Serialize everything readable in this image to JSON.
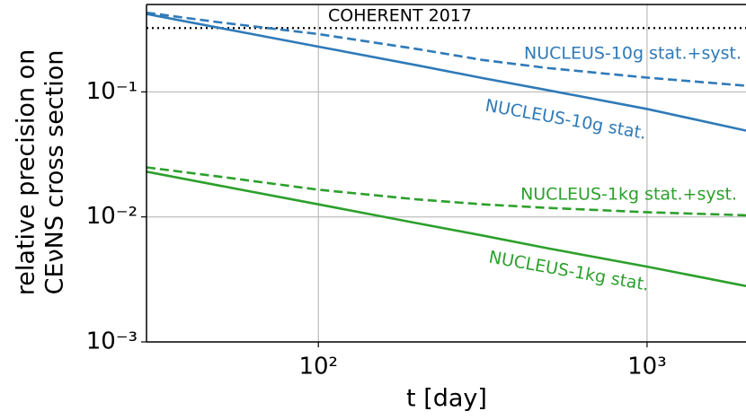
{
  "chart_data": {
    "type": "line",
    "xlabel": "t [day]",
    "ylabel": [
      "relative precision on",
      "CEνNS cross section"
    ],
    "xscale": "log",
    "yscale": "log",
    "grid": true,
    "xlim": [
      30,
      2000
    ],
    "ylim": [
      0.001,
      0.5
    ],
    "xticks": [
      {
        "value": 100,
        "label": "10²"
      },
      {
        "value": 1000,
        "label": "10³"
      }
    ],
    "yticks": [
      {
        "value": 0.001,
        "label": "10⁻³"
      },
      {
        "value": 0.01,
        "label": "10⁻²"
      },
      {
        "value": 0.1,
        "label": "10⁻¹"
      }
    ],
    "x": [
      30,
      50,
      100,
      200,
      316,
      500,
      1000,
      2000
    ],
    "series": [
      {
        "name": "NUCLEUS-10g stat.+syst.",
        "color": "#2f7ab8",
        "dash": "dashed",
        "values": [
          0.43,
          0.36,
          0.29,
          0.22,
          0.18,
          0.155,
          0.13,
          0.112
        ]
      },
      {
        "name": "NUCLEUS-10g stat.",
        "color": "#2f7ab8",
        "dash": "solid",
        "values": [
          0.42,
          0.325,
          0.23,
          0.163,
          0.129,
          0.103,
          0.073,
          0.049
        ]
      },
      {
        "name": "NUCLEUS-1kg stat.+syst.",
        "color": "#2ca02c",
        "dash": "dashed",
        "values": [
          0.0249,
          0.021,
          0.0165,
          0.0138,
          0.0126,
          0.0118,
          0.0109,
          0.0103
        ]
      },
      {
        "name": "NUCLEUS-1kg stat.",
        "color": "#2ca02c",
        "dash": "solid",
        "values": [
          0.023,
          0.0178,
          0.0126,
          0.0089,
          0.0071,
          0.0056,
          0.004,
          0.0028
        ]
      }
    ],
    "reference_lines": [
      {
        "label": "COHERENT 2017",
        "value": 0.324,
        "color": "#000000",
        "style": "dotted"
      }
    ]
  }
}
